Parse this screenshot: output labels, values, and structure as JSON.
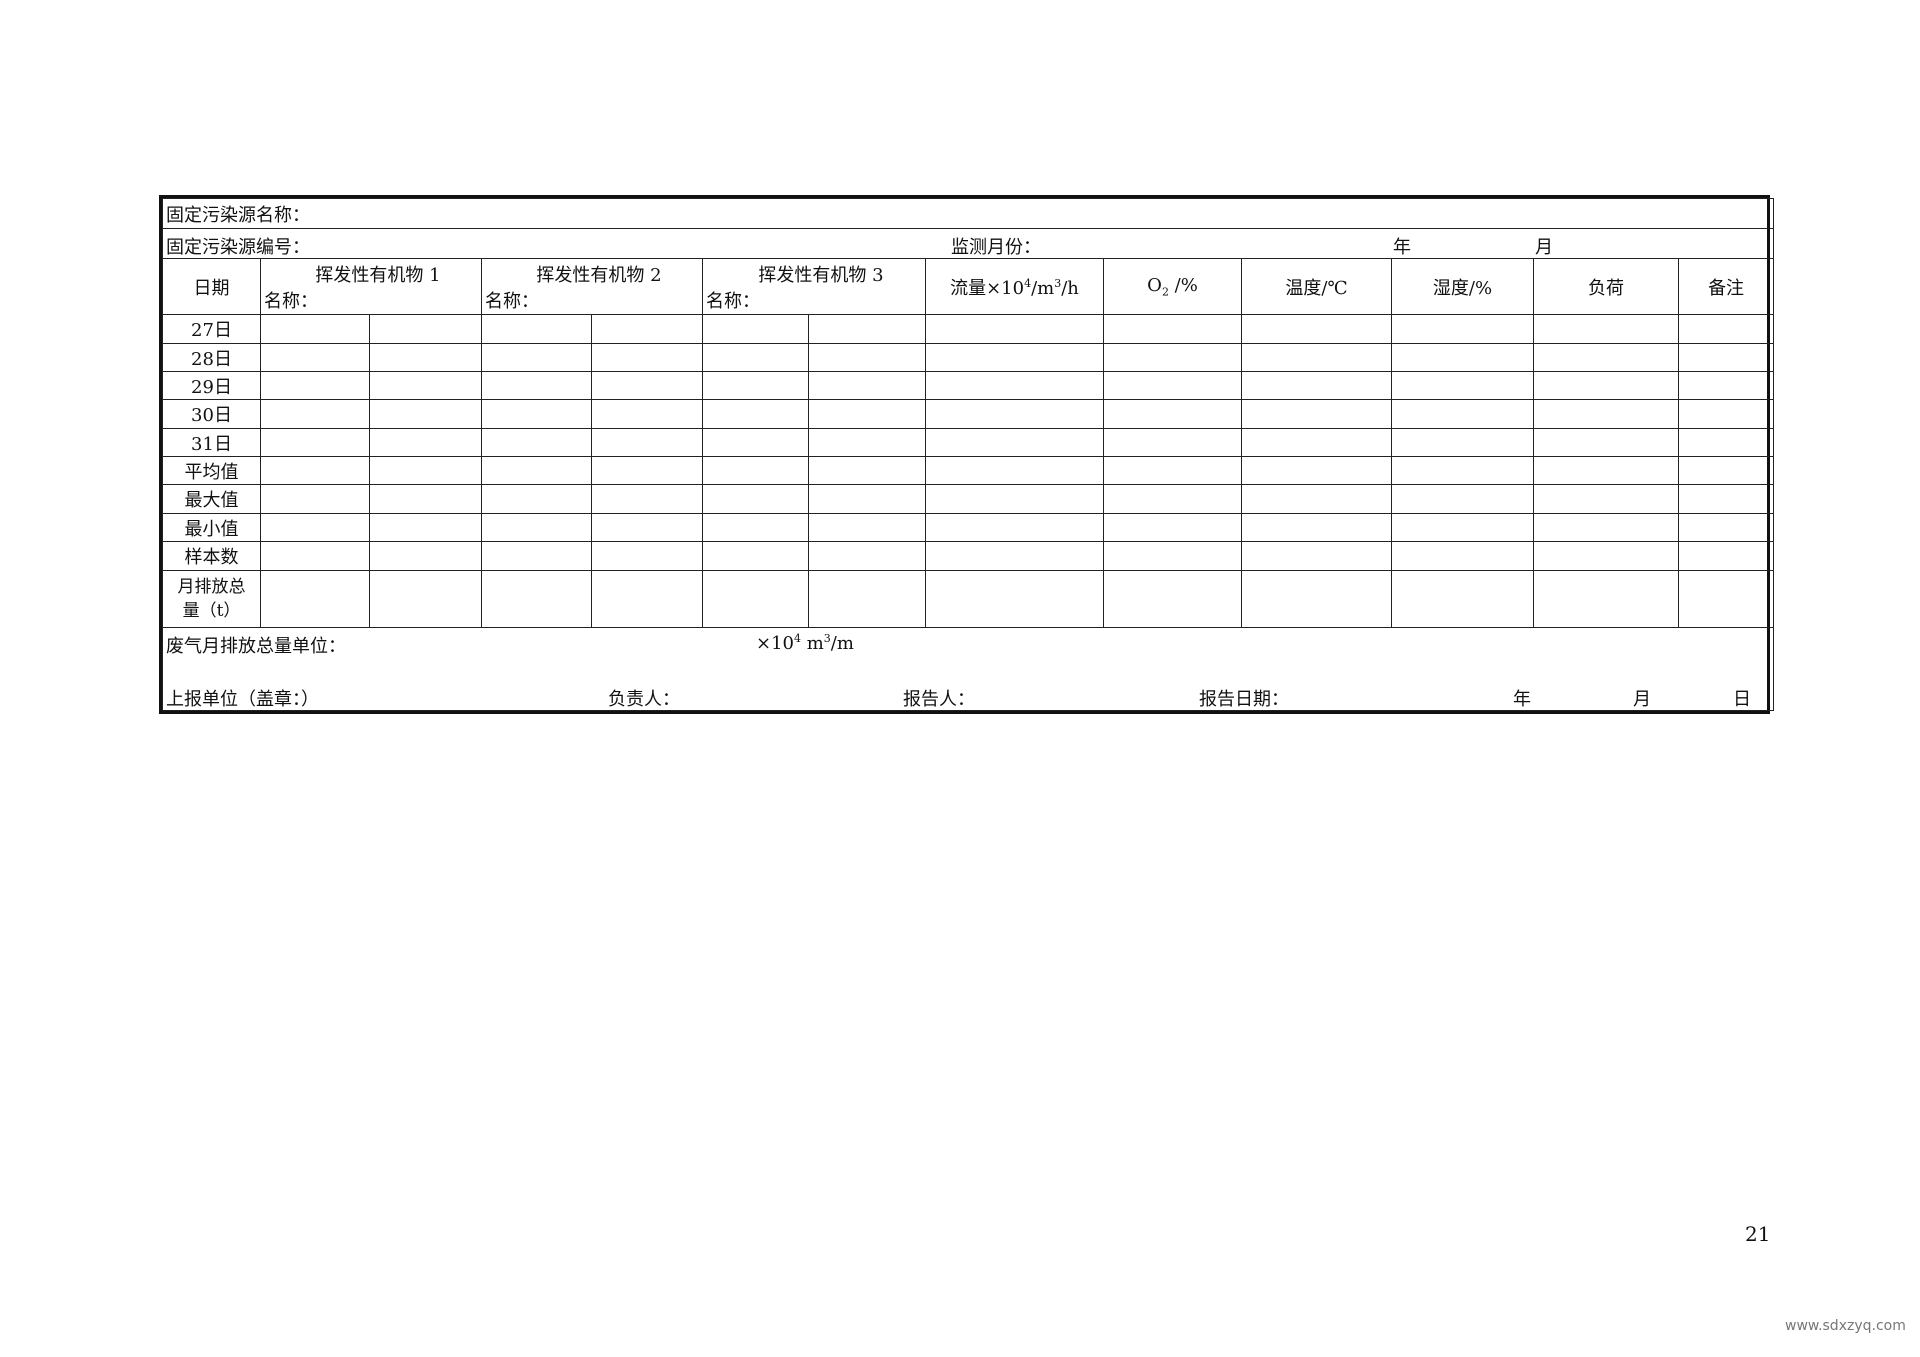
{
  "form": {
    "source_name_label": "固定污染源名称：",
    "source_code_label": "固定污染源编号：",
    "month_label": "监测月份：",
    "year_unit": "年",
    "month_unit": "月",
    "headers": {
      "date": "日期",
      "voc1": "挥发性有机物 1",
      "voc2": "挥发性有机物 2",
      "voc3": "挥发性有机物 3",
      "name_label": "名称：",
      "flow_prefix": "流量×10",
      "flow_exp": "4",
      "flow_mid": "/m",
      "flow_exp2": "3",
      "flow_suffix": "/h",
      "o2": "O",
      "o2_sub": "2",
      "o2_unit": " /%",
      "temperature": "温度/℃",
      "humidity": "湿度/%",
      "load": "负荷",
      "remarks": "备注"
    },
    "rows": [
      "27日",
      "28日",
      "29日",
      "30日",
      "31日",
      "平均值",
      "最大值",
      "最小值",
      "样本数"
    ],
    "total_row": {
      "line1": "月排放总",
      "line2": "量（t）"
    },
    "footer": {
      "exhaust_unit_label": "废气月排放总量单位：",
      "exhaust_unit_prefix": "×10",
      "exhaust_unit_exp": "4",
      "exhaust_unit_mid": " m",
      "exhaust_unit_exp2": "3",
      "exhaust_unit_suffix": "/m",
      "reporting_unit": "上报单位（盖章：）",
      "responsible": "负责人：",
      "reporter": "报告人：",
      "report_date": "报告日期：",
      "year": "年",
      "month": "月",
      "day": "日"
    }
  },
  "page_number": "21",
  "watermark": "www.sdxzyq.com"
}
